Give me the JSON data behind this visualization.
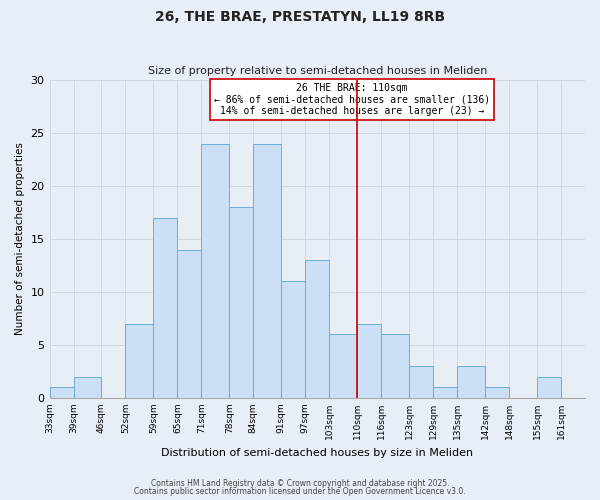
{
  "title": "26, THE BRAE, PRESTATYN, LL19 8RB",
  "subtitle": "Size of property relative to semi-detached houses in Meliden",
  "xlabel": "Distribution of semi-detached houses by size in Meliden",
  "ylabel": "Number of semi-detached properties",
  "bin_edges": [
    33,
    39,
    46,
    52,
    59,
    65,
    71,
    78,
    84,
    91,
    97,
    103,
    110,
    116,
    123,
    129,
    135,
    142,
    148,
    155,
    161,
    167
  ],
  "bar_heights": [
    1,
    2,
    0,
    7,
    17,
    14,
    24,
    18,
    24,
    11,
    13,
    6,
    7,
    6,
    3,
    1,
    3,
    1,
    0,
    2,
    0
  ],
  "bar_color": "#cce0f5",
  "bar_edge_color": "#6aaed6",
  "grid_color": "#d0d8e0",
  "vline_x": 110,
  "vline_color": "#cc0000",
  "annotation_title": "26 THE BRAE: 110sqm",
  "annotation_line1": "← 86% of semi-detached houses are smaller (136)",
  "annotation_line2": "14% of semi-detached houses are larger (23) →",
  "annotation_box_color": "#ffffff",
  "annotation_border_color": "#cc0000",
  "ylim": [
    0,
    30
  ],
  "yticks": [
    0,
    5,
    10,
    15,
    20,
    25,
    30
  ],
  "tick_labels": [
    "33sqm",
    "39sqm",
    "46sqm",
    "52sqm",
    "59sqm",
    "65sqm",
    "71sqm",
    "78sqm",
    "84sqm",
    "91sqm",
    "97sqm",
    "103sqm",
    "110sqm",
    "116sqm",
    "123sqm",
    "129sqm",
    "135sqm",
    "142sqm",
    "148sqm",
    "155sqm",
    "161sqm"
  ],
  "plot_bg_color": "#e8eef5",
  "fig_bg_color": "#e8eef5",
  "footnote1": "Contains HM Land Registry data © Crown copyright and database right 2025.",
  "footnote2": "Contains public sector information licensed under the Open Government Licence v3.0.",
  "title_fontsize": 10,
  "subtitle_fontsize": 8,
  "xlabel_fontsize": 8,
  "ylabel_fontsize": 7.5,
  "tick_fontsize": 6.5,
  "ytick_fontsize": 8,
  "footnote_fontsize": 5.5,
  "annotation_fontsize": 7
}
